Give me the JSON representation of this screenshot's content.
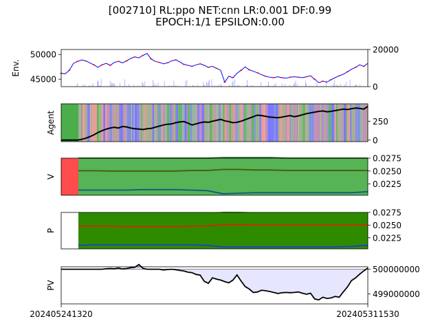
{
  "title_line1": "[002710] RL:ppo NET:cnn LR:0.001 DF:0.99",
  "title_line2": "EPOCH:1/1 EPSILON:0.00",
  "x_tick_labels": [
    "202405241320",
    "202405311530"
  ],
  "colors": {
    "price_line": "#0000ff",
    "price_marks": "#ff0000",
    "volume_bar": "#9999ff",
    "green": "#2ca02c",
    "red": "#ff0000",
    "dark_green": "#2e8b00",
    "pv_fill": "#e6e6ff",
    "pv_line": "#000000"
  },
  "chart_data": [
    {
      "panel": "env",
      "type": "line",
      "ylabel": "Env.",
      "left_ticks": [
        "45000",
        "50000"
      ],
      "right_ticks": [
        "0",
        "20000"
      ],
      "ylim": [
        43500,
        51000
      ],
      "volume_ylim": [
        0,
        20000
      ],
      "series": [
        {
          "values": [
            46200,
            46100,
            46800,
            48200,
            48600,
            48900,
            48700,
            48300,
            47900,
            47400,
            47900,
            48200,
            47800,
            48400,
            48600,
            48300,
            48700,
            49200,
            49500,
            49300,
            49800,
            50200,
            49100,
            48600,
            48400,
            48100,
            48300,
            48700,
            48900,
            48500,
            48000,
            47800,
            47600,
            47900,
            48100,
            47800,
            47400,
            47600,
            47200,
            46800,
            44400,
            45600,
            45300,
            46200,
            46800,
            47500,
            46900,
            46600,
            46300,
            45900,
            45600,
            45400,
            45300,
            45500,
            45300,
            45200,
            45400,
            45500,
            45400,
            45300,
            45500,
            45700,
            45000,
            44300,
            44600,
            44400,
            44900,
            45300,
            45700,
            46000,
            46500,
            47000,
            47400,
            47900,
            47600,
            48200
          ]
        }
      ]
    },
    {
      "panel": "agent",
      "type": "line",
      "ylabel": "Agent",
      "right_ticks": [
        "0",
        "250"
      ],
      "ylim": [
        -20,
        480
      ],
      "values": [
        0,
        0,
        0,
        0,
        0,
        10,
        25,
        45,
        70,
        100,
        125,
        145,
        160,
        170,
        160,
        180,
        175,
        160,
        150,
        145,
        140,
        150,
        155,
        170,
        185,
        200,
        210,
        215,
        230,
        240,
        245,
        225,
        200,
        215,
        230,
        240,
        235,
        250,
        262,
        275,
        255,
        245,
        230,
        235,
        250,
        270,
        290,
        310,
        330,
        325,
        315,
        305,
        300,
        295,
        305,
        315,
        325,
        310,
        320,
        335,
        350,
        360,
        370,
        380,
        385,
        375,
        380,
        390,
        400,
        410,
        405,
        415,
        425,
        420,
        410,
        445
      ]
    },
    {
      "panel": "V",
      "type": "line",
      "ylabel": "V",
      "right_ticks": [
        "0.0225",
        "0.0250",
        "0.0275"
      ],
      "ylim": [
        0.0203,
        0.0275
      ],
      "series": [
        {
          "values": [
            0.0275,
            0.0275,
            0.0275,
            0.0275,
            0.0275,
            0.0275,
            0.0275,
            0.0275,
            0.0275,
            0.0276,
            0.0276,
            0.0276,
            0.0276,
            0.0275,
            0.0275,
            0.0275,
            0.0275,
            0.0275,
            0.0275
          ]
        },
        {
          "values": [
            0.02505,
            0.02505,
            0.025,
            0.025,
            0.025,
            0.025,
            0.025,
            0.0251,
            0.0251,
            0.0253,
            0.0253,
            0.0252,
            0.0252,
            0.0251,
            0.0251,
            0.0251,
            0.0251,
            0.0251,
            0.0251
          ]
        },
        {
          "values": [
            0.0213,
            0.0213,
            0.0213,
            0.0213,
            0.0214,
            0.0214,
            0.0214,
            0.0213,
            0.0212,
            0.0206,
            0.0207,
            0.0208,
            0.0208,
            0.0208,
            0.0208,
            0.0208,
            0.0208,
            0.0208,
            0.021
          ]
        }
      ]
    },
    {
      "panel": "P",
      "type": "line",
      "ylabel": "P",
      "right_ticks": [
        "0.0225",
        "0.0250",
        "0.0275"
      ],
      "ylim": [
        0.0203,
        0.0275
      ],
      "series": [
        {
          "values": [
            0.0273,
            0.0273,
            0.0273,
            0.0273,
            0.0273,
            0.0273,
            0.0273,
            0.0273,
            0.0273,
            0.0275,
            0.0275,
            0.0274,
            0.0274,
            0.0274,
            0.0274,
            0.0274,
            0.0274,
            0.0274,
            0.0274
          ]
        },
        {
          "values": [
            0.0248,
            0.0248,
            0.0248,
            0.0247,
            0.0247,
            0.0247,
            0.0247,
            0.0248,
            0.0248,
            0.0251,
            0.0251,
            0.025,
            0.025,
            0.025,
            0.025,
            0.025,
            0.025,
            0.025,
            0.025
          ]
        },
        {
          "values": [
            0.021,
            0.0211,
            0.0211,
            0.0211,
            0.0211,
            0.0211,
            0.0211,
            0.0211,
            0.021,
            0.0207,
            0.0207,
            0.0207,
            0.0207,
            0.0207,
            0.0207,
            0.0207,
            0.0207,
            0.0208,
            0.021
          ]
        }
      ]
    },
    {
      "panel": "PV",
      "type": "area",
      "ylabel": "PV",
      "right_ticks": [
        "499000000",
        "500000000"
      ],
      "ylim": [
        498600000,
        500100000
      ],
      "baseline": 500000000,
      "values": [
        500000000,
        500000000,
        500000000,
        500000000,
        500000000,
        500000000,
        500000000,
        500000000,
        500000000,
        500000000,
        500000000,
        500020000,
        500030000,
        500020000,
        500050000,
        500010000,
        500030000,
        500060000,
        500080000,
        500190000,
        500040000,
        500000000,
        500000000,
        500000000,
        500000000,
        499970000,
        499990000,
        500000000,
        499980000,
        499950000,
        499930000,
        499880000,
        499860000,
        499790000,
        499760000,
        499510000,
        499430000,
        499650000,
        499600000,
        499560000,
        499500000,
        499450000,
        499560000,
        499770000,
        499520000,
        499300000,
        499200000,
        499060000,
        499080000,
        499150000,
        499130000,
        499100000,
        499060000,
        499020000,
        499050000,
        499060000,
        499050000,
        499060000,
        499080000,
        499030000,
        498990000,
        499030000,
        498800000,
        498760000,
        498870000,
        498820000,
        498840000,
        498900000,
        498870000,
        499080000,
        499280000,
        499540000,
        499650000,
        499800000,
        499930000,
        500050000
      ]
    }
  ]
}
